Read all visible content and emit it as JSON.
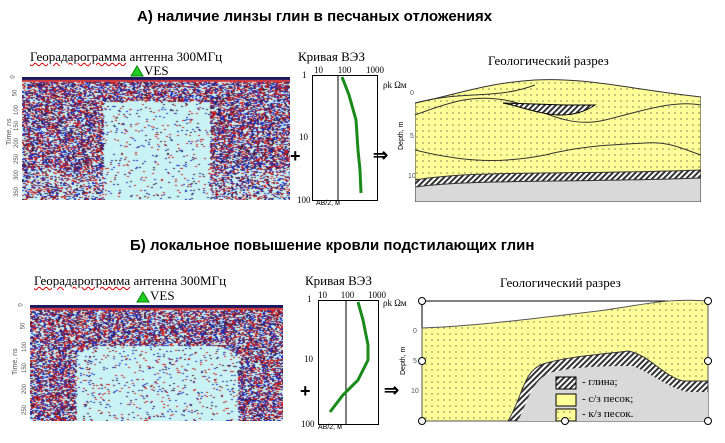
{
  "panels": [
    {
      "title": "А)  наличие линзы глин в песчаных отложениях",
      "radargram": {
        "label_main": "Георадарограмма",
        "label_rest": " антенна 300МГц",
        "marker": "VES",
        "axis_label": "Time, ns",
        "ticks": [
          "0",
          "50",
          "100",
          "150",
          "200",
          "250",
          "300",
          "350"
        ]
      },
      "ves": {
        "title": "Кривая ВЭЗ",
        "x_ticks": [
          "10",
          "100",
          "1000"
        ],
        "y_ticks": [
          "1",
          "10",
          "100"
        ],
        "x_unit": "ρk Ωм",
        "y_unit": "АВ/2, м"
      },
      "section": {
        "title": "Геологический разрез",
        "axis_label": "Depth, m",
        "ticks": [
          "0",
          "5",
          "10"
        ]
      },
      "plus": "+",
      "arrow": "⇒"
    },
    {
      "title": "Б)  локальное   повышение кровли подстилающих глин",
      "radargram": {
        "label_main": "Георадарограмма",
        "label_rest": " антенна 300МГц",
        "marker": "VES",
        "axis_label": "Time, ns",
        "ticks": [
          "0",
          "50",
          "100",
          "150",
          "200",
          "250"
        ]
      },
      "ves": {
        "title": "Кривая ВЭЗ",
        "x_ticks": [
          "10",
          "100",
          "1000"
        ],
        "y_ticks": [
          "1",
          "10",
          "100"
        ],
        "x_unit": "ρk Ωм",
        "y_unit": "АВ/2, м"
      },
      "section": {
        "title": "Геологический разрез",
        "axis_label": "Depth, m",
        "ticks": [
          "0",
          "5",
          "10"
        ]
      },
      "plus": "+",
      "arrow": "⇒",
      "legend": [
        "- глина;",
        "- с/з песок;",
        "- к/з песок."
      ]
    }
  ],
  "colors": {
    "sand_fine": "#ffff99",
    "clay": "#555555",
    "base": "#d9d9d9",
    "ves_curve": "#1a8a1a",
    "marker": "#22cc22"
  }
}
